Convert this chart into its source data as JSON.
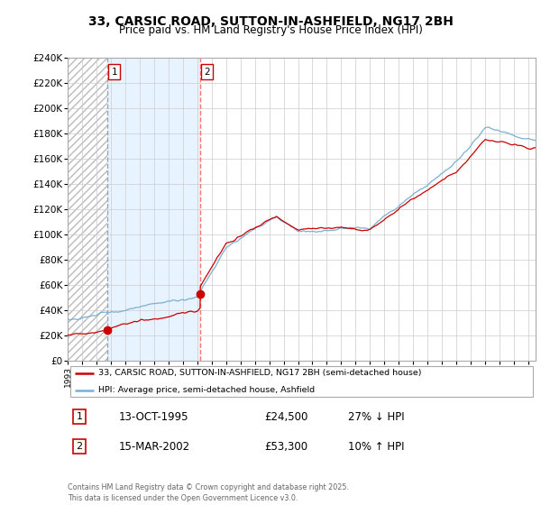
{
  "title_line1": "33, CARSIC ROAD, SUTTON-IN-ASHFIELD, NG17 2BH",
  "title_line2": "Price paid vs. HM Land Registry's House Price Index (HPI)",
  "ylim": [
    0,
    240000
  ],
  "yticks": [
    0,
    20000,
    40000,
    60000,
    80000,
    100000,
    120000,
    140000,
    160000,
    180000,
    200000,
    220000,
    240000
  ],
  "sale1_date_x": 1995.78,
  "sale1_price": 24500,
  "sale2_date_x": 2002.21,
  "sale2_price": 53300,
  "line_color_price": "#cc0000",
  "line_color_hpi": "#7ab0d4",
  "vline1_color": "#aaaaaa",
  "vline2_color": "#ff6666",
  "shade_color": "#ddeeff",
  "legend_label_price": "33, CARSIC ROAD, SUTTON-IN-ASHFIELD, NG17 2BH (semi-detached house)",
  "legend_label_hpi": "HPI: Average price, semi-detached house, Ashfield",
  "footer": "Contains HM Land Registry data © Crown copyright and database right 2025.\nThis data is licensed under the Open Government Licence v3.0.",
  "grid_color": "#cccccc",
  "xmin": 1993,
  "xmax": 2025.5
}
